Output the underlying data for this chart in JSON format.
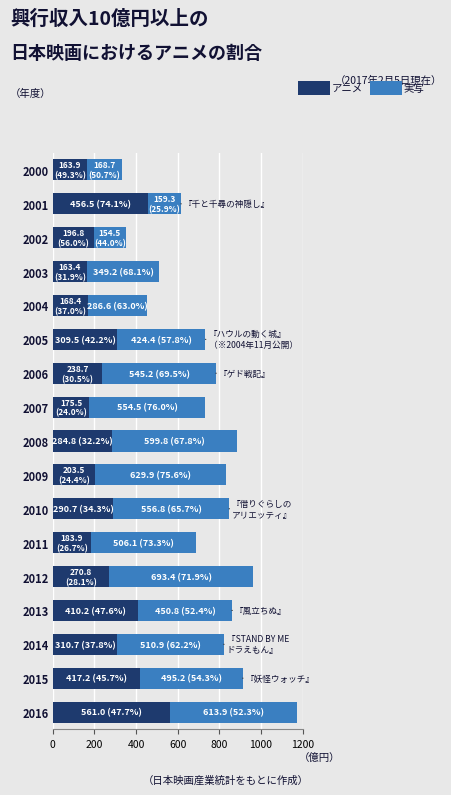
{
  "title_line1": "興行収入10億円以上の",
  "title_line2": "日本映画におけるアニメの割合",
  "subtitle": "（2017年2月5日現在）",
  "footer": "（日本映画産業統計をもとに作成）",
  "year_label": "（年度）",
  "years": [
    2000,
    2001,
    2002,
    2003,
    2004,
    2005,
    2006,
    2007,
    2008,
    2009,
    2010,
    2011,
    2012,
    2013,
    2014,
    2015,
    2016
  ],
  "anime": [
    163.9,
    456.5,
    196.8,
    163.4,
    168.4,
    309.5,
    238.7,
    175.5,
    284.8,
    203.5,
    290.7,
    183.9,
    270.8,
    410.2,
    310.7,
    417.2,
    561.0
  ],
  "jitsusha": [
    168.7,
    159.3,
    154.5,
    349.2,
    286.6,
    424.4,
    545.2,
    554.5,
    599.8,
    629.9,
    556.8,
    506.1,
    693.4,
    450.8,
    510.9,
    495.2,
    613.9
  ],
  "anime_pct": [
    "49.3%",
    "74.1%",
    "56.0%",
    "31.9%",
    "37.0%",
    "42.2%",
    "30.5%",
    "24.0%",
    "32.2%",
    "24.4%",
    "34.3%",
    "26.7%",
    "28.1%",
    "47.6%",
    "37.8%",
    "45.7%",
    "47.7%"
  ],
  "jitsusha_pct": [
    "50.7%",
    "25.9%",
    "44.0%",
    "68.1%",
    "63.0%",
    "57.8%",
    "69.5%",
    "76.0%",
    "67.8%",
    "75.6%",
    "65.7%",
    "73.3%",
    "71.9%",
    "52.4%",
    "62.2%",
    "54.3%",
    "52.3%"
  ],
  "color_anime": "#1e3a6e",
  "color_jitsusha": "#3a7fc1",
  "color_bg": "#e8e8e8",
  "xlim": 1200,
  "xticks": [
    0,
    200,
    400,
    600,
    800,
    1000,
    1200
  ],
  "legend_anime": "アニメ",
  "legend_jitsusha": "実写",
  "annot_years": [
    2001,
    2005,
    2006,
    2010,
    2013,
    2014,
    2015
  ],
  "annot_texts": [
    "『千と千尋の神隠し』",
    "『ハウルの動く城』\n（※2004年11月公開）",
    "『ゲド戦記』",
    "『借りぐらしの\nアリエッティ』",
    "『風立ちぬ』",
    "『STAND BY ME\nドラえもん』",
    "『妖怪ウォッチ』"
  ]
}
